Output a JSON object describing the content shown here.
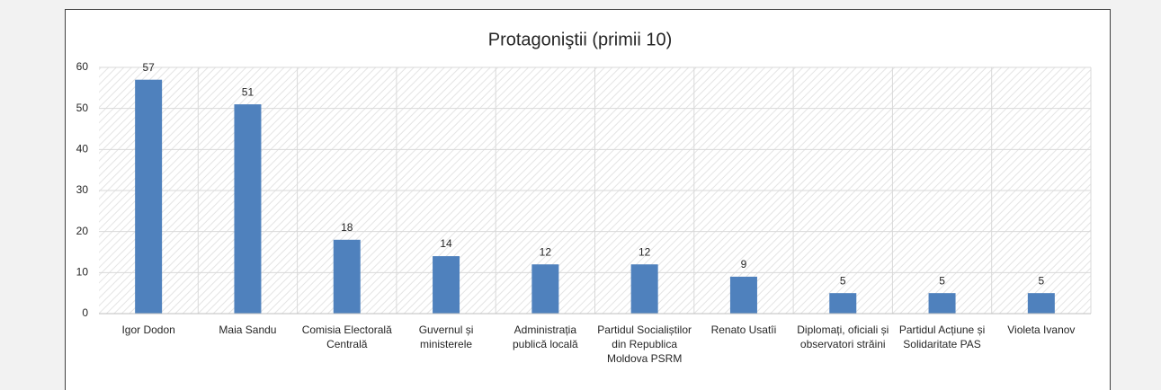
{
  "chart_data": {
    "type": "bar",
    "title": "Protagoniştii (primii 10)",
    "categories": [
      "Igor Dodon",
      "Maia Sandu",
      "Comisia Electorală Centrală",
      "Guvernul și ministerele",
      "Administrația publică locală",
      "Partidul Socialiștilor din Republica Moldova PSRM",
      "Renato Usatîi",
      "Diplomați, oficiali și observatori străini",
      "Partidul Acțiune și Solidaritate PAS",
      "Violeta Ivanov"
    ],
    "values": [
      57,
      51,
      18,
      14,
      12,
      12,
      9,
      5,
      5,
      5
    ],
    "color": "#4f81bd",
    "ylim": [
      0,
      60
    ],
    "yticks": [
      0,
      10,
      20,
      30,
      40,
      50,
      60
    ],
    "grid": true
  }
}
